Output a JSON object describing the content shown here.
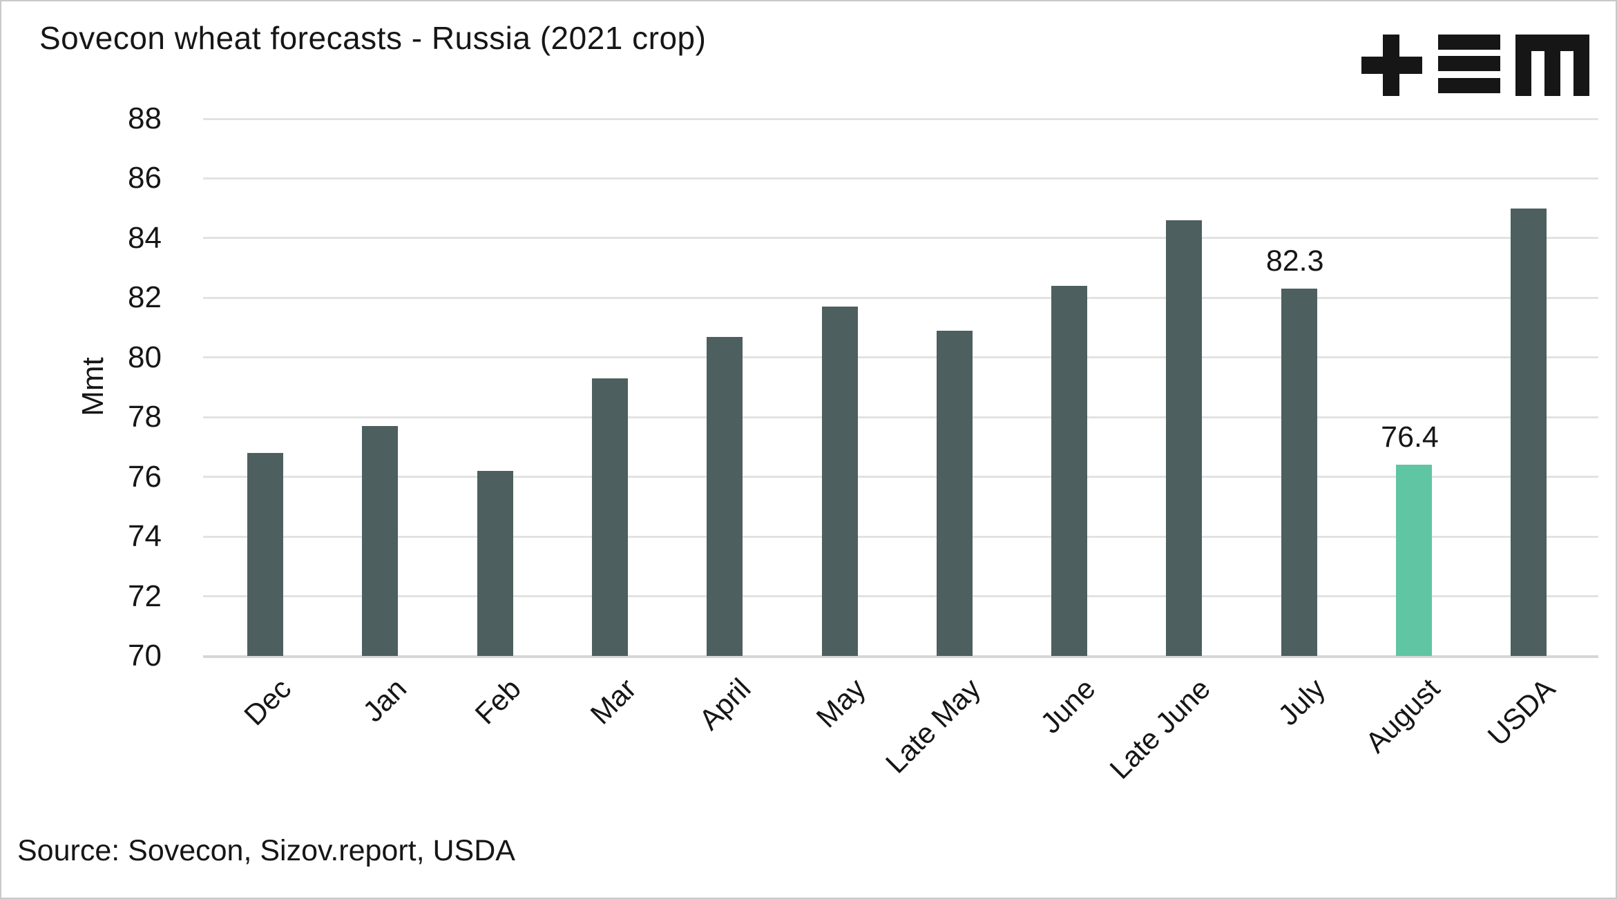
{
  "header": {
    "title": "Sovecon wheat forecasts - Russia (2021 crop)",
    "logo_name": "plus-equals-m-logo"
  },
  "source_note": "Source: Sovecon, Sizov.report, USDA",
  "chart_data": {
    "type": "bar",
    "title": "Sovecon wheat forecasts - Russia (2021 crop)",
    "xlabel": "",
    "ylabel": "Mmt",
    "categories": [
      "Dec",
      "Jan",
      "Feb",
      "Mar",
      "April",
      "May",
      "Late May",
      "June",
      "Late June",
      "July",
      "August",
      "USDA"
    ],
    "values": [
      76.8,
      77.7,
      76.2,
      79.3,
      80.7,
      81.7,
      80.9,
      82.4,
      84.6,
      82.3,
      76.4,
      85.0
    ],
    "ylim": [
      70,
      88
    ],
    "yticks": [
      70,
      72,
      74,
      76,
      78,
      80,
      82,
      84,
      86,
      88
    ],
    "grid": true,
    "legend_position": "none",
    "annotations": [
      {
        "category": "July",
        "text": "82.3"
      },
      {
        "category": "August",
        "text": "76.4"
      }
    ],
    "highlight_category": "August",
    "bar_color": "#4d5f5e",
    "highlight_color": "#5fc5a2",
    "gridline_color": "#e2e2e2"
  }
}
